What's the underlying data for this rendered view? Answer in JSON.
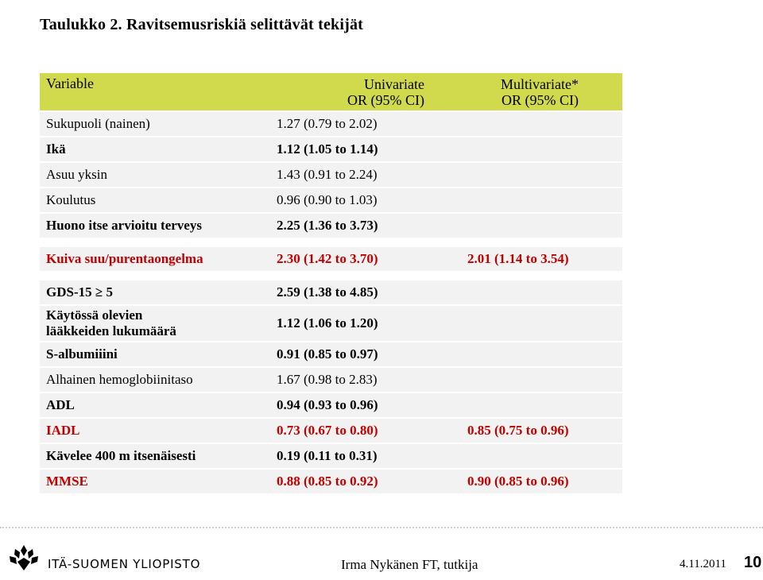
{
  "title": "Taulukko 2.  Ravitsemusriskiä selittävät tekijät",
  "table": {
    "headers": {
      "variable": "Variable",
      "univariate_line1": "Univariate",
      "univariate_line2": "OR (95% CI)",
      "multivariate_line1": "Multivariate*",
      "multivariate_line2": "OR (95% CI)"
    },
    "rows": [
      {
        "label": "Sukupuoli (nainen)",
        "label2": "",
        "uni": "1.27 (0.79 to 2.02)",
        "multi": "",
        "style": "normal"
      },
      {
        "label": "Ikä",
        "label2": "",
        "uni": "1.12 (1.05 to 1.14)",
        "multi": "",
        "style": "bold"
      },
      {
        "label": "Asuu yksin",
        "label2": "",
        "uni": "1.43 (0.91 to 2.24)",
        "multi": "",
        "style": "normal"
      },
      {
        "label": "Koulutus",
        "label2": "",
        "uni": "0.96 (0.90 to 1.03)",
        "multi": "",
        "style": "normal"
      },
      {
        "label": "Huono itse arvioitu terveys",
        "label2": "",
        "uni": "2.25 (1.36 to 3.73)",
        "multi": "",
        "style": "bold"
      },
      {
        "label": "Kuiva suu/purentaongelma",
        "label2": "",
        "uni": "2.30 (1.42 to 3.70)",
        "multi": "2.01 (1.14 to 3.54)",
        "style": "red"
      },
      {
        "label": "GDS-15 ≥ 5",
        "label2": "",
        "uni": "2.59 (1.38 to 4.85)",
        "multi": "",
        "style": "bold"
      },
      {
        "label": "Käytössä olevien",
        "label2": "lääkkeiden lukumäärä",
        "uni": "1.12 (1.06 to 1.20)",
        "multi": "",
        "style": "bold"
      },
      {
        "label": "S-albumiiini",
        "label2": "",
        "uni": "0.91 (0.85 to 0.97)",
        "multi": "",
        "style": "bold"
      },
      {
        "label": "Alhainen hemoglobiinitaso",
        "label2": "",
        "uni": "1.67 (0.98 to 2.83)",
        "multi": "",
        "style": "normal"
      },
      {
        "label": "ADL",
        "label2": "",
        "uni": "0.94 (0.93 to 0.96)",
        "multi": "",
        "style": "bold"
      },
      {
        "label": "IADL",
        "label2": "",
        "uni": "0.73 (0.67 to 0.80)",
        "multi": "0.85 (0.75 to 0.96)",
        "style": "red"
      },
      {
        "label": "Kävelee 400 m itsenäisesti",
        "label2": "",
        "uni": "0.19 (0.11 to 0.31)",
        "multi": "",
        "style": "bold"
      },
      {
        "label": "MMSE",
        "label2": "",
        "uni": "0.88 (0.85 to 0.92)",
        "multi": "0.90 (0.85 to 0.96)",
        "style": "red"
      }
    ]
  },
  "footer": {
    "university": "ITÄ-SUOMEN YLIOPISTO",
    "author": "Irma Nykänen FT, tutkija",
    "date": "4.11.2011",
    "page_number": "10"
  },
  "colors": {
    "header_bg": "#d1d94c",
    "row_bg": "#f2f2f2",
    "highlight_text": "#c00000"
  },
  "icons": {
    "logo": "university-logo-icon"
  }
}
